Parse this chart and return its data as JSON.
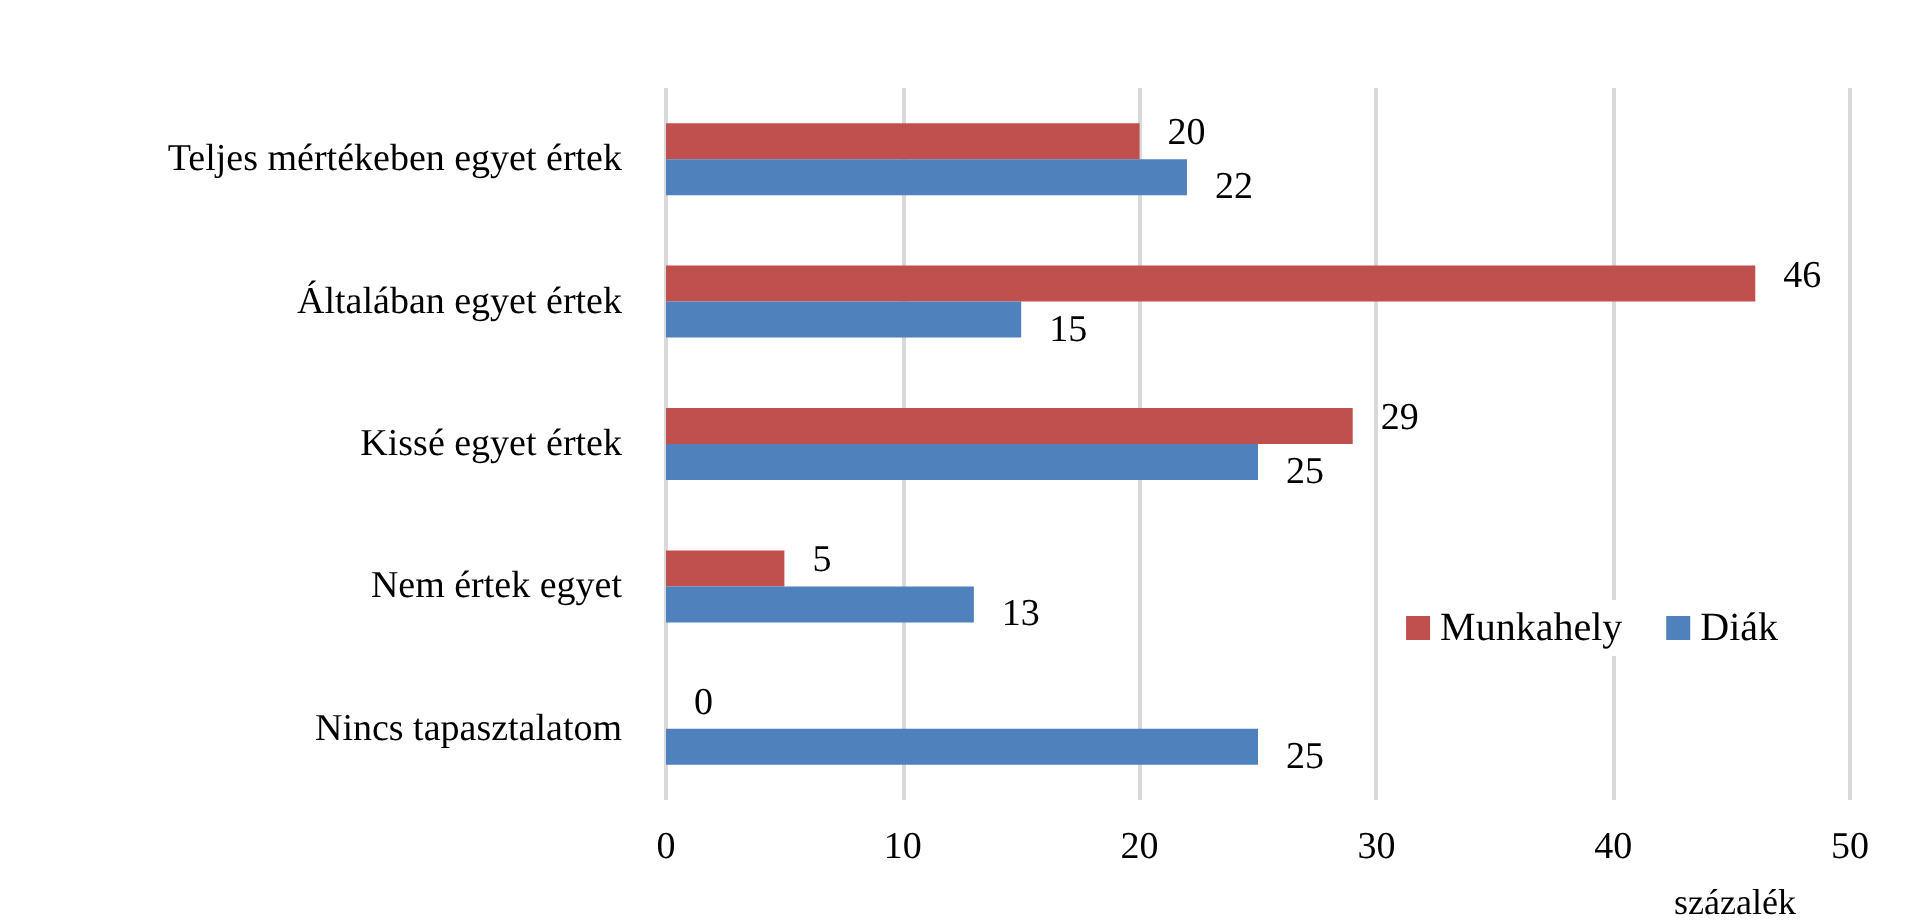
{
  "chart_data": {
    "type": "bar",
    "orientation": "horizontal",
    "categories": [
      "Teljes mértékeben egyet értek",
      "Általában egyet értek",
      "Kissé egyet értek",
      "Nem értek egyet",
      "Nincs tapasztalatom"
    ],
    "series": [
      {
        "name": "Munkahely",
        "color": "#c0504d",
        "values": [
          20,
          46,
          29,
          5,
          0
        ]
      },
      {
        "name": "Diák",
        "color": "#4f81bd",
        "values": [
          22,
          15,
          25,
          13,
          25
        ]
      }
    ],
    "xlim": [
      0,
      50
    ],
    "xticks": [
      0,
      10,
      20,
      30,
      40,
      50
    ],
    "xlabel": "százalék",
    "grid": "x",
    "legend": "bottom right",
    "data_labels": true
  }
}
